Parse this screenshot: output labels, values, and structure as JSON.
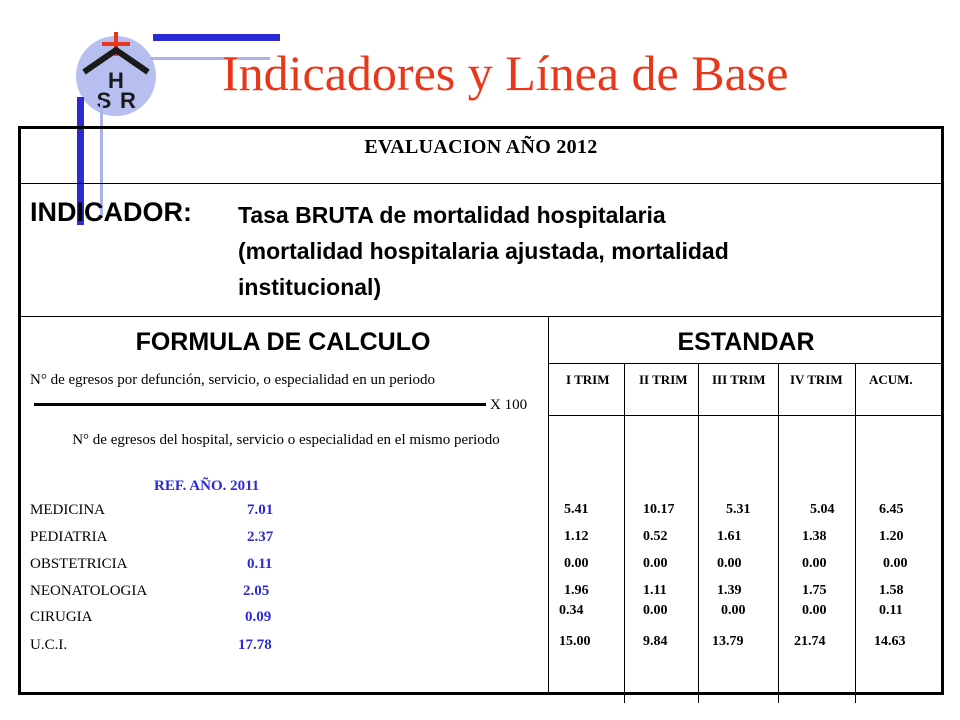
{
  "title": "Indicadores y Línea de Base",
  "logo": {
    "letters": [
      "H",
      "S",
      "R"
    ],
    "cross_color": "#e8381b",
    "circle_color": "#b7bff0"
  },
  "colors": {
    "title": "#e8381b",
    "accent_blue": "#2b2bd6"
  },
  "evaluation": "EVALUACION AÑO 2012",
  "indicator": {
    "label": "INDICADOR:",
    "line1": "Tasa BRUTA de mortalidad hospitalaria",
    "line2": "(mortalidad hospitalaria ajustada, mortalidad",
    "line3": "institucional)"
  },
  "headers": {
    "formula": "FORMULA DE CALCULO",
    "standard": "ESTANDAR"
  },
  "formula": {
    "numerator": "N° de egresos por defunción, servicio, o especialidad en un periodo",
    "multiplier": "X 100",
    "denominator": "N° de egresos del hospital, servicio o especialidad en el mismo periodo"
  },
  "reference": {
    "label": "REF. AÑO. 2011",
    "services": [
      {
        "name": "MEDICINA",
        "value": "7.01"
      },
      {
        "name": "PEDIATRIA",
        "value": "2.37"
      },
      {
        "name": "OBSTETRICIA",
        "value": "0.11"
      },
      {
        "name": "NEONATOLOGIA",
        "value": "2.05"
      },
      {
        "name": "CIRUGIA",
        "value": "0.09"
      },
      {
        "name": "U.C.I.",
        "value": "17.78"
      }
    ]
  },
  "quarters": [
    "I TRIM",
    "II TRIM",
    "III TRIM",
    "IV TRIM",
    "ACUM."
  ],
  "rows": [
    [
      "5.41",
      "10.17",
      "5.31",
      "5.04",
      "6.45"
    ],
    [
      "1.12",
      "0.52",
      "1.61",
      "1.38",
      "1.20"
    ],
    [
      "0.00",
      "0.00",
      "0.00",
      "0.00",
      "0.00"
    ],
    [
      "1.96",
      "1.11",
      "1.39",
      "1.75",
      "1.58"
    ],
    [
      "0.34",
      "0.00",
      "0.00",
      "0.00",
      "0.11"
    ],
    [
      "15.00",
      "9.84",
      "13.79",
      "21.74",
      "14.63"
    ]
  ]
}
